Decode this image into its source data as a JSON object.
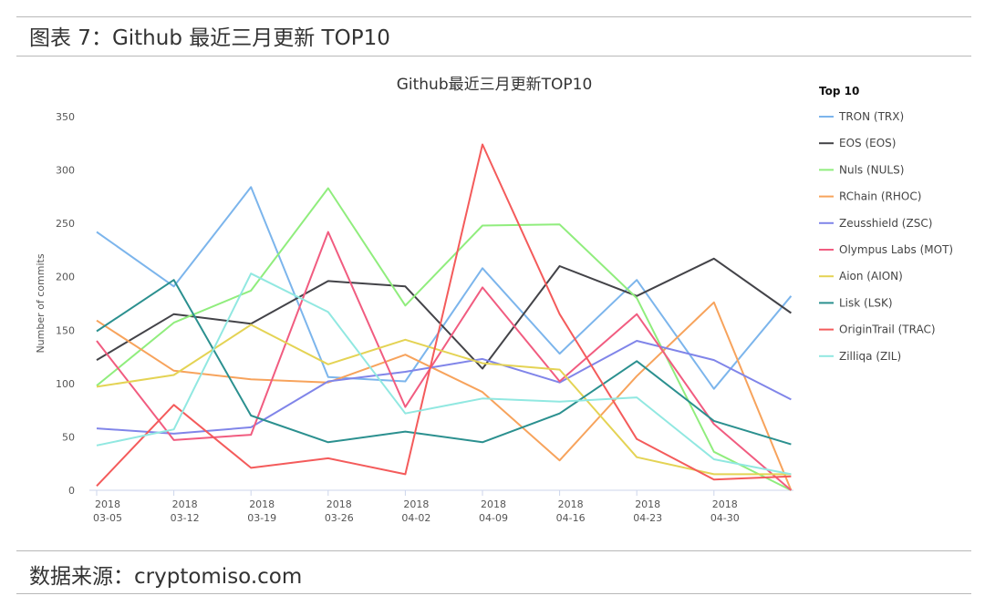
{
  "figure_caption": "图表 7：Github 最近三月更新 TOP10",
  "source_caption": "数据来源：cryptomiso.com",
  "chart_data": {
    "type": "line",
    "title": "Github最近三月更新TOP10",
    "ylabel": "Number of commits",
    "xlabel": "",
    "ylim": [
      0,
      350
    ],
    "yticks": [
      0,
      50,
      100,
      150,
      200,
      250,
      300,
      350
    ],
    "grid": false,
    "legend_title": "Top 10",
    "legend_position": "right",
    "x_ticks": [
      {
        "year": "2018",
        "date": "03-05"
      },
      {
        "year": "2018",
        "date": "03-12"
      },
      {
        "year": "2018",
        "date": "03-19"
      },
      {
        "year": "2018",
        "date": "03-26"
      },
      {
        "year": "2018",
        "date": "04-02"
      },
      {
        "year": "2018",
        "date": "04-09"
      },
      {
        "year": "2018",
        "date": "04-16"
      },
      {
        "year": "2018",
        "date": "04-23"
      },
      {
        "year": "2018",
        "date": "04-30"
      }
    ],
    "x": [
      "2018-03-05",
      "2018-03-12",
      "2018-03-19",
      "2018-03-26",
      "2018-04-02",
      "2018-04-09",
      "2018-04-16",
      "2018-04-23",
      "2018-04-30",
      "2018-05-07"
    ],
    "series": [
      {
        "name": "TRON (TRX)",
        "color": "#7cb5ec",
        "values": [
          242,
          191,
          284,
          106,
          102,
          208,
          128,
          197,
          95,
          182
        ]
      },
      {
        "name": "EOS (EOS)",
        "color": "#434348",
        "values": [
          122,
          165,
          156,
          196,
          191,
          114,
          210,
          182,
          217,
          166
        ]
      },
      {
        "name": "Nuls (NULS)",
        "color": "#90ed7d",
        "values": [
          98,
          157,
          187,
          283,
          173,
          248,
          249,
          180,
          36,
          0
        ]
      },
      {
        "name": "RChain (RHOC)",
        "color": "#f7a35c",
        "values": [
          159,
          112,
          104,
          101,
          127,
          92,
          28,
          107,
          176,
          0
        ]
      },
      {
        "name": "Zeusshield (ZSC)",
        "color": "#8085e9",
        "values": [
          58,
          53,
          59,
          102,
          111,
          123,
          101,
          140,
          122,
          85
        ]
      },
      {
        "name": "Olympus Labs (MOT)",
        "color": "#f15c80",
        "values": [
          140,
          47,
          52,
          242,
          78,
          190,
          102,
          165,
          62,
          0
        ]
      },
      {
        "name": "Aion (AION)",
        "color": "#e4d354",
        "values": [
          97,
          108,
          155,
          118,
          141,
          119,
          113,
          31,
          15,
          15
        ]
      },
      {
        "name": "Lisk (LSK)",
        "color": "#2b908f",
        "values": [
          149,
          197,
          70,
          45,
          55,
          45,
          72,
          121,
          65,
          43
        ]
      },
      {
        "name": "OriginTrail (TRAC)",
        "color": "#f45b5b",
        "values": [
          4,
          80,
          21,
          30,
          15,
          324,
          165,
          48,
          10,
          13
        ]
      },
      {
        "name": "Zilliqa (ZIL)",
        "color": "#91e8e1",
        "values": [
          42,
          57,
          203,
          167,
          72,
          86,
          83,
          87,
          29,
          15
        ]
      }
    ]
  }
}
